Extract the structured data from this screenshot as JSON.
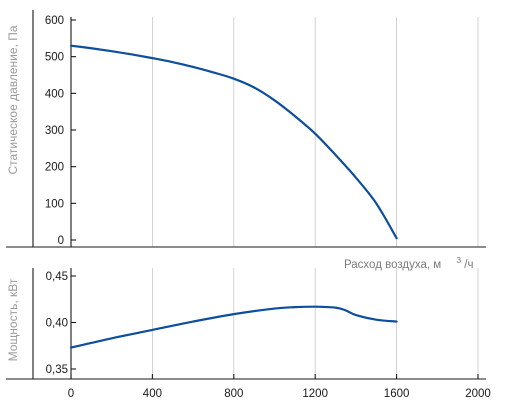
{
  "chart_data": [
    {
      "type": "line",
      "ylabel": "Статическое давление, Па",
      "xlabel": "Расход воздуха, м",
      "xlabel_superscript": "3",
      "xlabel_suffix": "/ч",
      "xlim": [
        0,
        2000
      ],
      "ylim": [
        0,
        600
      ],
      "yticks": [
        "600",
        "500",
        "400",
        "300",
        "200",
        "100",
        "0"
      ],
      "grid": true,
      "color": "#0d4f9c",
      "series": [
        {
          "x": [
            0,
            100,
            200,
            300,
            400,
            500,
            600,
            700,
            800,
            900,
            1000,
            1100,
            1200,
            1300,
            1400,
            1500,
            1600
          ],
          "y": [
            530,
            523,
            515,
            506,
            496,
            485,
            472,
            457,
            440,
            416,
            381,
            338,
            290,
            232,
            170,
            100,
            5
          ]
        }
      ]
    },
    {
      "type": "line",
      "ylabel": "Мощность, кВт",
      "xlim": [
        0,
        2000
      ],
      "ylim": [
        0.35,
        0.45
      ],
      "yticks": [
        "0,45",
        "0,40",
        "0,35"
      ],
      "xticks": [
        "0",
        "400",
        "800",
        "1200",
        "1600",
        "2000"
      ],
      "grid": true,
      "color": "#0d4f9c",
      "series": [
        {
          "x": [
            0,
            200,
            400,
            600,
            800,
            1000,
            1100,
            1200,
            1300,
            1350,
            1400,
            1500,
            1600
          ],
          "y": [
            0.373,
            0.383,
            0.392,
            0.401,
            0.409,
            0.415,
            0.4165,
            0.417,
            0.416,
            0.413,
            0.408,
            0.403,
            0.401
          ]
        }
      ]
    }
  ]
}
